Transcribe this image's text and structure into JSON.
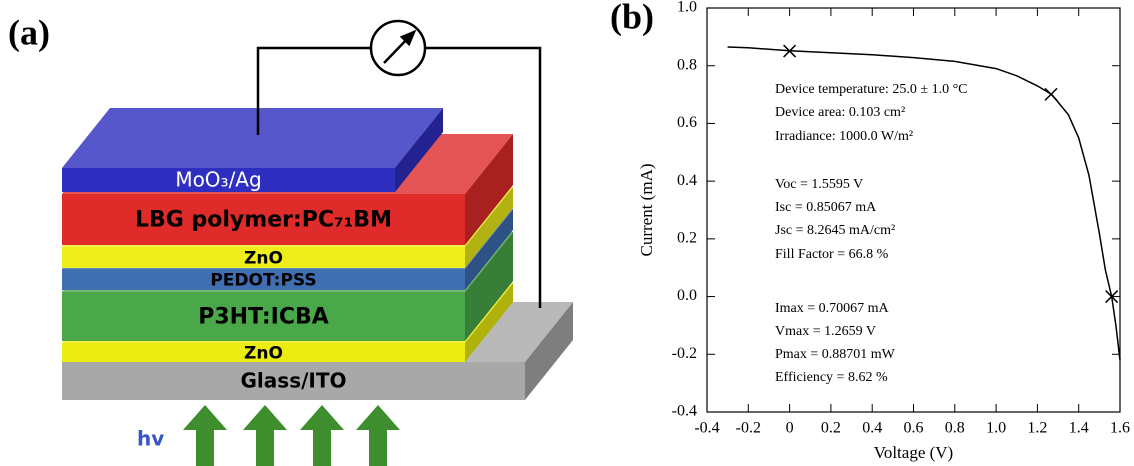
{
  "panel_a": {
    "label": "(a)",
    "light_label": "hv",
    "layers": [
      "Glass/ITO",
      "ZnO",
      "P3HT:ICBA",
      "PEDOT:PSS",
      "ZnO",
      "LBG polymer:PC₇₁BM",
      "MoO₃/Ag"
    ]
  },
  "chart_data": {
    "type": "line",
    "panel_label": "(b)",
    "xlabel": "Voltage (V)",
    "ylabel": "Current (mA)",
    "xlim": [
      -0.4,
      1.6
    ],
    "ylim": [
      -0.4,
      1.0
    ],
    "xticks": [
      -0.4,
      -0.2,
      0,
      0.2,
      0.4,
      0.6,
      0.8,
      {
        "value": 1,
        "label": "1.0"
      },
      1.2,
      1.4,
      1.6
    ],
    "yticks": [
      -0.4,
      -0.2,
      {
        "value": 0,
        "label": "0.0"
      },
      0.2,
      0.4,
      0.6,
      0.8,
      {
        "value": 1,
        "label": "1.0"
      }
    ],
    "series": [
      {
        "color": "#000000",
        "x": [
          -0.3,
          -0.2,
          0,
          0.2,
          0.4,
          0.6,
          0.8,
          1.0,
          1.1,
          1.2,
          1.27,
          1.35,
          1.4,
          1.45,
          1.5,
          1.53,
          1.56,
          1.58,
          1.6
        ],
        "values": [
          0.865,
          0.862,
          0.852,
          0.845,
          0.838,
          0.828,
          0.815,
          0.79,
          0.765,
          0.73,
          0.7,
          0.63,
          0.55,
          0.42,
          0.22,
          0.09,
          0.0,
          -0.1,
          -0.22
        ]
      }
    ],
    "markers": {
      "x": [
        0,
        1.2659,
        1.5595
      ],
      "values": [
        0.85067,
        0.70067,
        0
      ]
    },
    "annotations": [
      "Device temperature:  25.0 ± 1.0 °C",
      "Device area:  0.103 cm²",
      "Irradiance:  1000.0 W/m²",
      "Voc = 1.5595 V",
      "Isc = 0.85067 mA",
      "Jsc = 8.2645 mA/cm²",
      "Fill Factor = 66.8 %",
      "Imax = 0.70067 mA",
      "Vmax = 1.2659 V",
      "Pmax = 0.88701 mW",
      "Efficiency = 8.62 %"
    ]
  }
}
